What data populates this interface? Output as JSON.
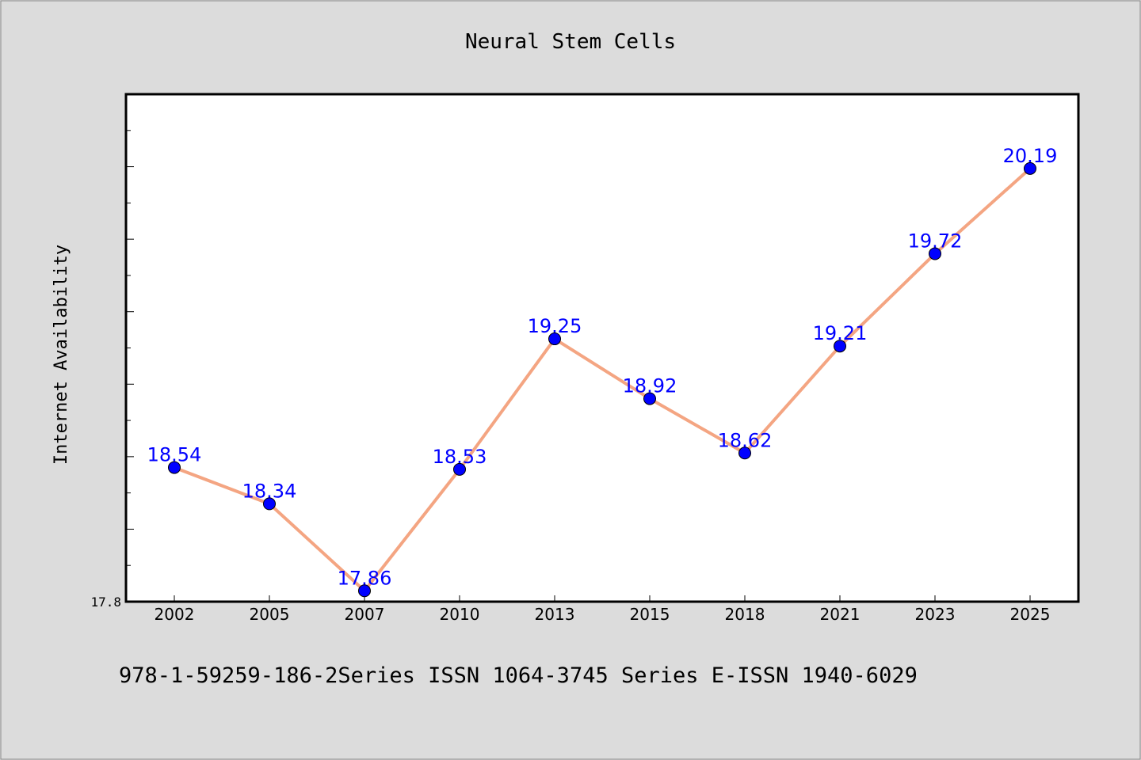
{
  "chart_data": {
    "type": "line",
    "title": "Neural Stem Cells",
    "xlabel": "",
    "ylabel": "Internet Availability",
    "categories": [
      "2002",
      "2005",
      "2007",
      "2010",
      "2013",
      "2015",
      "2018",
      "2021",
      "2023",
      "2025"
    ],
    "series": [
      {
        "values": [
          18.54,
          18.34,
          17.86,
          18.53,
          19.25,
          18.92,
          18.62,
          19.21,
          19.72,
          20.19
        ]
      }
    ],
    "y_tick_labels": [
      "17.8"
    ],
    "ylim": [
      17.8,
      20.6
    ],
    "grid": false,
    "colors": {
      "line": "#f4a582",
      "marker": "#0000ff",
      "label": "#0000ff",
      "background": "#dcdcdc",
      "plot_bg": "#ffffff"
    }
  },
  "footer": {
    "text": "978-1-59259-186-2Series ISSN 1064-3745 Series E-ISSN 1940-6029"
  }
}
